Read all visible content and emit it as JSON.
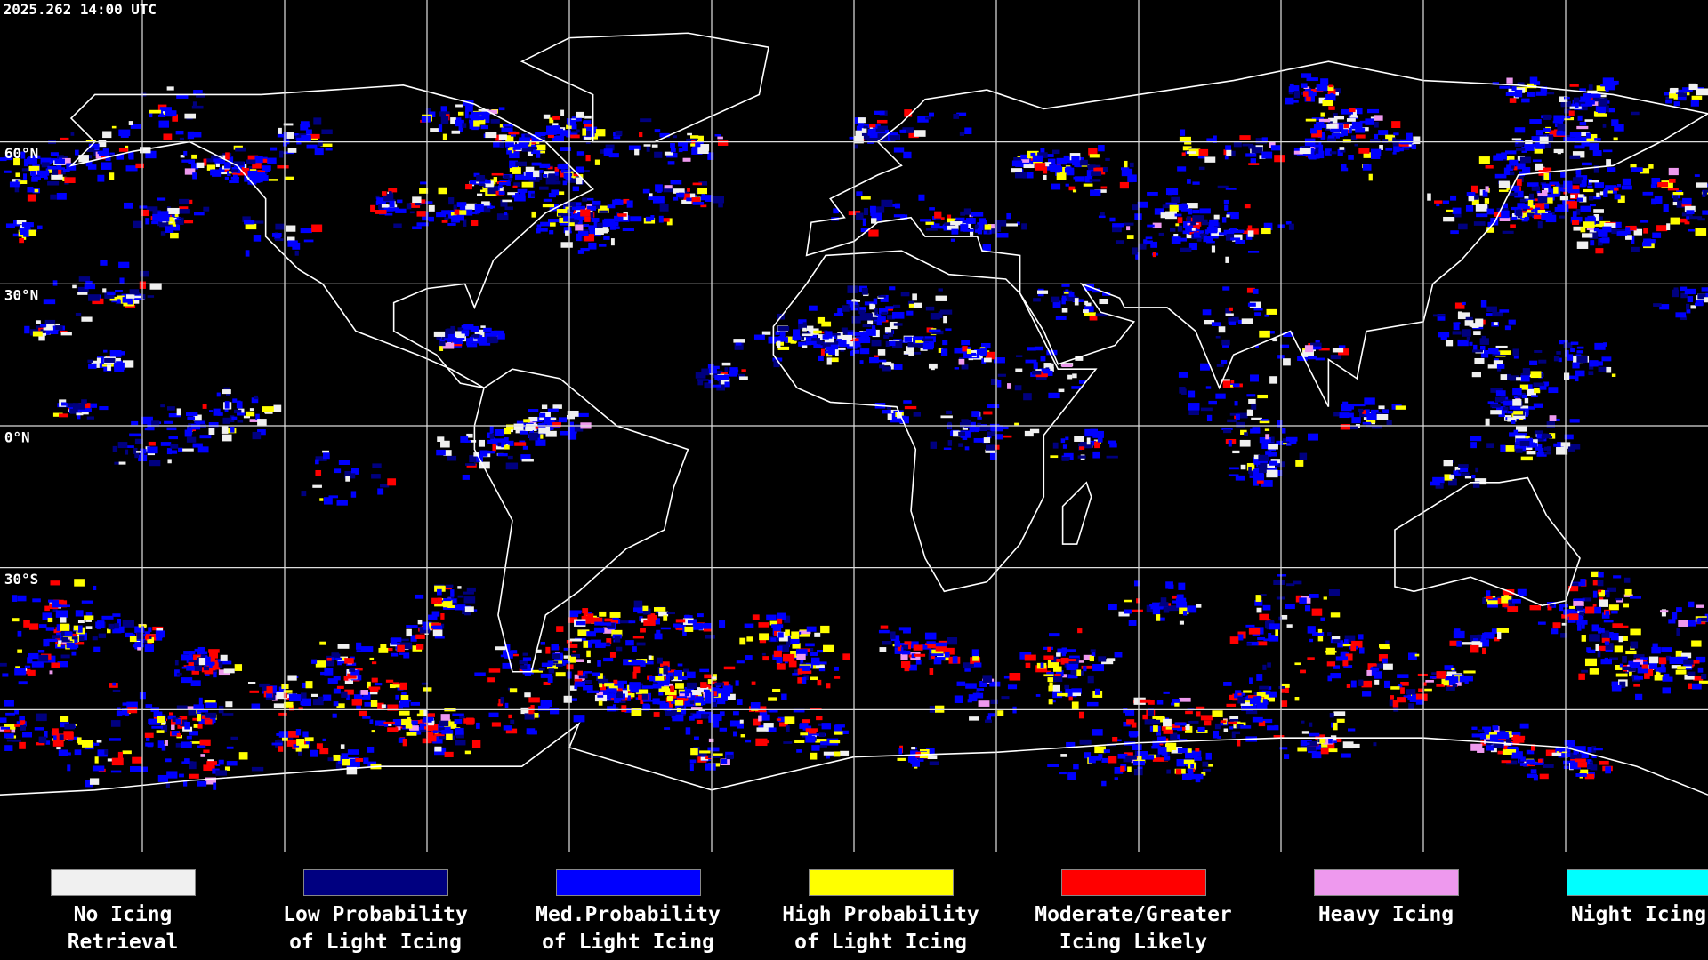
{
  "header": {
    "timestamp": "2025.262 14:00 UTC"
  },
  "latitude_labels": [
    "60°N",
    "30°N",
    "0°N",
    "30°S"
  ],
  "legend": [
    {
      "lines": [
        "No Icing",
        "Retrieval"
      ],
      "color": "#f0f0f0"
    },
    {
      "lines": [
        "Low Probability",
        "of Light Icing"
      ],
      "color": "#000080"
    },
    {
      "lines": [
        "Med.Probability",
        "of Light Icing"
      ],
      "color": "#0000ff"
    },
    {
      "lines": [
        "High Probability",
        "of Light Icing"
      ],
      "color": "#ffff00"
    },
    {
      "lines": [
        "Moderate/Greater",
        "Icing Likely"
      ],
      "color": "#ff0000"
    },
    {
      "lines": [
        "Heavy Icing"
      ],
      "color": "#ee99ee"
    },
    {
      "lines": [
        "Night Icing"
      ],
      "color": "#00ffff"
    }
  ]
}
